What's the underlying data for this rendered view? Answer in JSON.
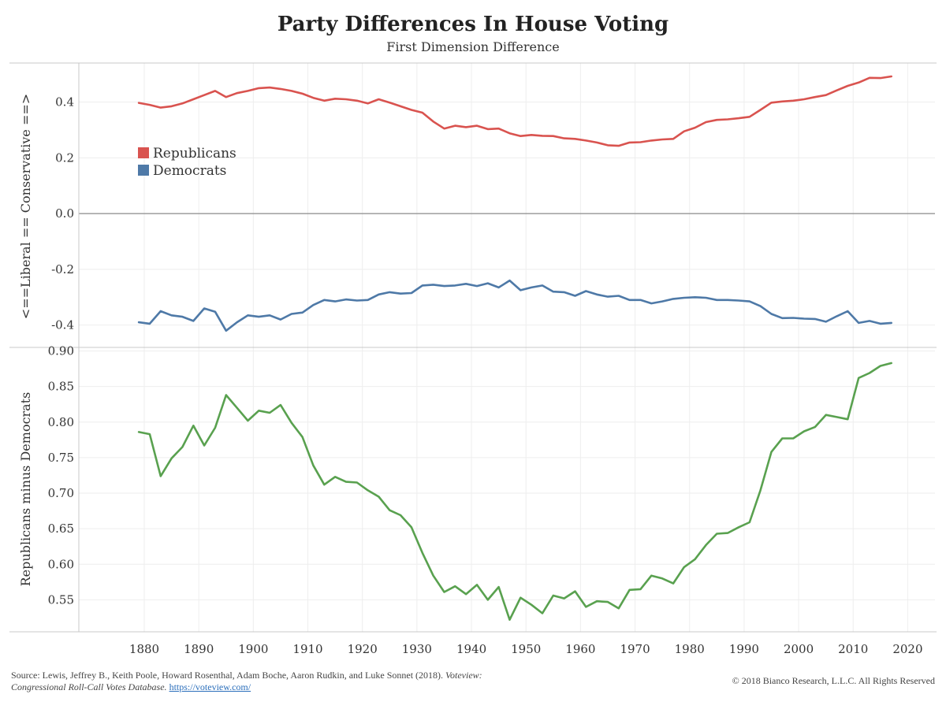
{
  "title": "Party Differences In House Voting",
  "subtitle": "First Dimension Difference",
  "footer": {
    "source_prefix": "Source: Lewis, Jeffrey B., Keith Poole, Howard Rosenthal, Adam Boche, Aaron Rudkin, and Luke Sonnet (2018). ",
    "source_italic": "Voteview:",
    "source_line2_italic": "Congressional Roll-Call Votes Database.",
    "source_link": "https://voteview.com/",
    "copyright": "© 2018 Bianco Research, L.L.C. All Rights Reserved"
  },
  "chart_data": [
    {
      "type": "line",
      "title": "",
      "ylabel": "<==Liberal == Conservative ==>",
      "xlim": [
        1868,
        2025
      ],
      "ylim": [
        -0.48,
        0.54
      ],
      "yticks": [
        "0.4",
        "0.2",
        "0.0",
        "-0.2",
        "-0.4"
      ],
      "ytick_values": [
        0.4,
        0.2,
        0.0,
        -0.2,
        -0.4
      ],
      "grid": true,
      "legend": {
        "placement": "upper-left",
        "entries": [
          "Republicans",
          "Democrats"
        ]
      },
      "x": [
        1879,
        1881,
        1883,
        1885,
        1887,
        1889,
        1891,
        1893,
        1895,
        1897,
        1899,
        1901,
        1903,
        1905,
        1907,
        1909,
        1911,
        1913,
        1915,
        1917,
        1919,
        1921,
        1923,
        1925,
        1927,
        1929,
        1931,
        1933,
        1935,
        1937,
        1939,
        1941,
        1943,
        1945,
        1947,
        1949,
        1951,
        1953,
        1955,
        1957,
        1959,
        1961,
        1963,
        1965,
        1967,
        1969,
        1971,
        1973,
        1975,
        1977,
        1979,
        1981,
        1983,
        1985,
        1987,
        1989,
        1991,
        1993,
        1995,
        1997,
        1999,
        2001,
        2003,
        2005,
        2007,
        2009,
        2011,
        2013,
        2015,
        2017
      ],
      "series": [
        {
          "name": "Republicans",
          "color": "#d9534f",
          "values": [
            0.397,
            0.39,
            0.38,
            0.385,
            0.395,
            0.41,
            0.425,
            0.44,
            0.418,
            0.432,
            0.44,
            0.45,
            0.452,
            0.447,
            0.44,
            0.43,
            0.415,
            0.405,
            0.412,
            0.41,
            0.405,
            0.395,
            0.41,
            0.398,
            0.385,
            0.372,
            0.362,
            0.33,
            0.305,
            0.315,
            0.31,
            0.315,
            0.303,
            0.305,
            0.288,
            0.278,
            0.282,
            0.279,
            0.278,
            0.27,
            0.268,
            0.262,
            0.255,
            0.245,
            0.243,
            0.255,
            0.256,
            0.262,
            0.266,
            0.268,
            0.295,
            0.308,
            0.328,
            0.336,
            0.338,
            0.342,
            0.347,
            0.372,
            0.398,
            0.402,
            0.405,
            0.41,
            0.418,
            0.425,
            0.442,
            0.458,
            0.47,
            0.487,
            0.486,
            0.492
          ]
        },
        {
          "name": "Democrats",
          "color": "#4e79a7",
          "values": [
            -0.39,
            -0.395,
            -0.35,
            -0.365,
            -0.37,
            -0.385,
            -0.34,
            -0.352,
            -0.42,
            -0.39,
            -0.365,
            -0.37,
            -0.365,
            -0.38,
            -0.36,
            -0.355,
            -0.328,
            -0.31,
            -0.315,
            -0.308,
            -0.312,
            -0.31,
            -0.29,
            -0.282,
            -0.287,
            -0.285,
            -0.258,
            -0.255,
            -0.26,
            -0.258,
            -0.252,
            -0.26,
            -0.25,
            -0.265,
            -0.24,
            -0.275,
            -0.265,
            -0.258,
            -0.28,
            -0.282,
            -0.295,
            -0.278,
            -0.29,
            -0.298,
            -0.295,
            -0.31,
            -0.31,
            -0.322,
            -0.315,
            -0.306,
            -0.302,
            -0.3,
            -0.302,
            -0.31,
            -0.31,
            -0.312,
            -0.315,
            -0.332,
            -0.36,
            -0.375,
            -0.374,
            -0.377,
            -0.378,
            -0.388,
            -0.368,
            -0.35,
            -0.392,
            -0.385,
            -0.395,
            -0.392
          ]
        }
      ]
    },
    {
      "type": "line",
      "title": "",
      "ylabel": "Republicans minus Democrats",
      "xlim": [
        1868,
        2025
      ],
      "ylim": [
        0.505,
        0.905
      ],
      "yticks": [
        "0.90",
        "0.85",
        "0.80",
        "0.75",
        "0.70",
        "0.65",
        "0.60",
        "0.55"
      ],
      "ytick_values": [
        0.9,
        0.85,
        0.8,
        0.75,
        0.7,
        0.65,
        0.6,
        0.55
      ],
      "xticks": [
        "1880",
        "1890",
        "1900",
        "1910",
        "1920",
        "1930",
        "1940",
        "1950",
        "1960",
        "1970",
        "1980",
        "1990",
        "2000",
        "2010",
        "2020"
      ],
      "xtick_values": [
        1880,
        1890,
        1900,
        1910,
        1920,
        1930,
        1940,
        1950,
        1960,
        1970,
        1980,
        1990,
        2000,
        2010,
        2020
      ],
      "grid": true,
      "x": [
        1879,
        1881,
        1883,
        1885,
        1887,
        1889,
        1891,
        1893,
        1895,
        1897,
        1899,
        1901,
        1903,
        1905,
        1907,
        1909,
        1911,
        1913,
        1915,
        1917,
        1919,
        1921,
        1923,
        1925,
        1927,
        1929,
        1931,
        1933,
        1935,
        1937,
        1939,
        1941,
        1943,
        1945,
        1947,
        1949,
        1951,
        1953,
        1955,
        1957,
        1959,
        1961,
        1963,
        1965,
        1967,
        1969,
        1971,
        1973,
        1975,
        1977,
        1979,
        1981,
        1983,
        1985,
        1987,
        1989,
        1991,
        1993,
        1995,
        1997,
        1999,
        2001,
        2003,
        2005,
        2007,
        2009,
        2011,
        2013,
        2015,
        2017
      ],
      "series": [
        {
          "name": "",
          "color": "#59a14f",
          "values": [
            0.786,
            0.783,
            0.724,
            0.749,
            0.765,
            0.795,
            0.767,
            0.792,
            0.838,
            0.82,
            0.802,
            0.816,
            0.813,
            0.824,
            0.799,
            0.779,
            0.739,
            0.712,
            0.723,
            0.716,
            0.715,
            0.704,
            0.695,
            0.676,
            0.669,
            0.652,
            0.616,
            0.584,
            0.561,
            0.569,
            0.558,
            0.571,
            0.55,
            0.568,
            0.522,
            0.553,
            0.543,
            0.531,
            0.556,
            0.552,
            0.562,
            0.54,
            0.548,
            0.547,
            0.538,
            0.564,
            0.565,
            0.584,
            0.58,
            0.573,
            0.596,
            0.607,
            0.627,
            0.643,
            0.644,
            0.652,
            0.659,
            0.704,
            0.758,
            0.777,
            0.777,
            0.787,
            0.793,
            0.81,
            0.807,
            0.804,
            0.862,
            0.869,
            0.879,
            0.883
          ]
        }
      ]
    }
  ]
}
